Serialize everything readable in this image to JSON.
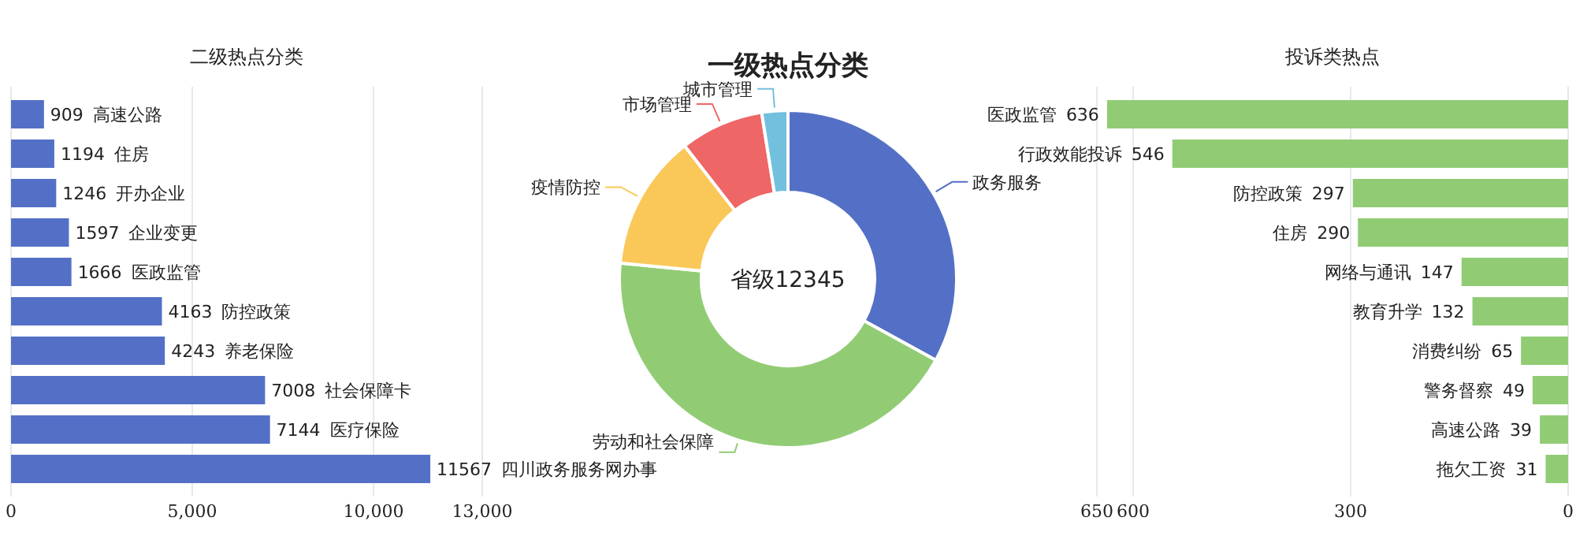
{
  "chart_data": [
    {
      "type": "bar",
      "title": "二级热点分类",
      "orientation": "horizontal",
      "categories": [
        "高速公路",
        "住房",
        "开办企业",
        "企业变更",
        "医政监管",
        "防控政策",
        "养老保险",
        "社会保障卡",
        "医疗保险",
        "四川政务服务网办事"
      ],
      "series": [
        {
          "color": "#5470c6",
          "values": [
            909,
            1194,
            1246,
            1597,
            1666,
            4163,
            4243,
            7008,
            7144,
            11567
          ]
        }
      ],
      "xlim": [
        0,
        13000
      ],
      "xticks": [
        0,
        {
          "value": 5000,
          "label": "5,000"
        },
        {
          "value": 10000,
          "label": "10,000"
        },
        {
          "value": 13000,
          "label": "13,000"
        }
      ],
      "grid": "x",
      "data_labels": true,
      "tick_labels": "x"
    },
    {
      "type": "donut",
      "title": "一级热点分类",
      "categories": [
        "政务服务",
        "劳动和社会保障",
        "疫情防控",
        "市场管理",
        "城市管理"
      ],
      "values": [
        33,
        43.5,
        13,
        8,
        2.5
      ],
      "colors": [
        "#5470c6",
        "#91cc75",
        "#fac858",
        "#ee6666",
        "#73c0de"
      ],
      "annotations": [
        "省级12345"
      ]
    },
    {
      "type": "bar",
      "title": "投诉类热点",
      "orientation": "horizontal",
      "categories": [
        "医政监管",
        "行政效能投诉",
        "防控政策",
        "住房",
        "网络与通讯",
        "教育升学",
        "消费纠纷",
        "警务督察",
        "高速公路",
        "拖欠工资"
      ],
      "series": [
        {
          "color": "#91cc75",
          "values": [
            636,
            546,
            297,
            290,
            147,
            132,
            65,
            49,
            39,
            31
          ]
        }
      ],
      "xlim": [
        650,
        0
      ],
      "xticks": [
        650,
        600,
        300,
        0
      ],
      "grid": "x",
      "data_labels": true,
      "tick_labels": "x"
    }
  ]
}
